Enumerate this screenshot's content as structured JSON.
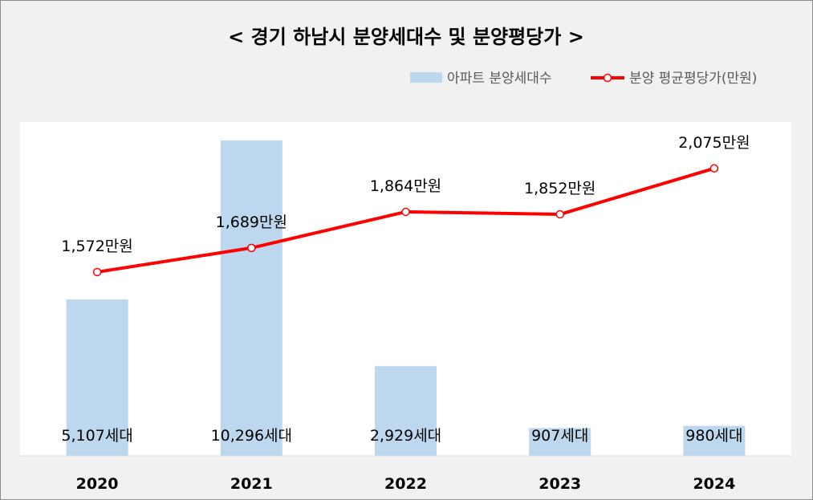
{
  "chart_data": {
    "type": "bar",
    "title": "< 경기 하남시 분양세대수 및 분양평당가 >",
    "categories": [
      "2020",
      "2021",
      "2022",
      "2023",
      "2024"
    ],
    "series": [
      {
        "name": "아파트 분양세대수",
        "type": "bar",
        "values": [
          5107,
          10296,
          2929,
          907,
          980
        ],
        "labels": [
          "5,107세대",
          "10,296세대",
          "2,929세대",
          "907세대",
          "980세대"
        ],
        "color": "#bdd7ee"
      },
      {
        "name": "분양 평균평당가(만원)",
        "type": "line",
        "values": [
          1572,
          1689,
          1864,
          1852,
          2075
        ],
        "labels": [
          "1,572만원",
          "1,689만원",
          "1,864만원",
          "1,852만원",
          "2,075만원"
        ],
        "color": "#ff0000",
        "marker": "circle"
      }
    ],
    "bar_axis_range": [
      0,
      10900
    ],
    "line_axis_range": [
      680,
      2300
    ],
    "grid": false,
    "legend_position": "top-right"
  }
}
